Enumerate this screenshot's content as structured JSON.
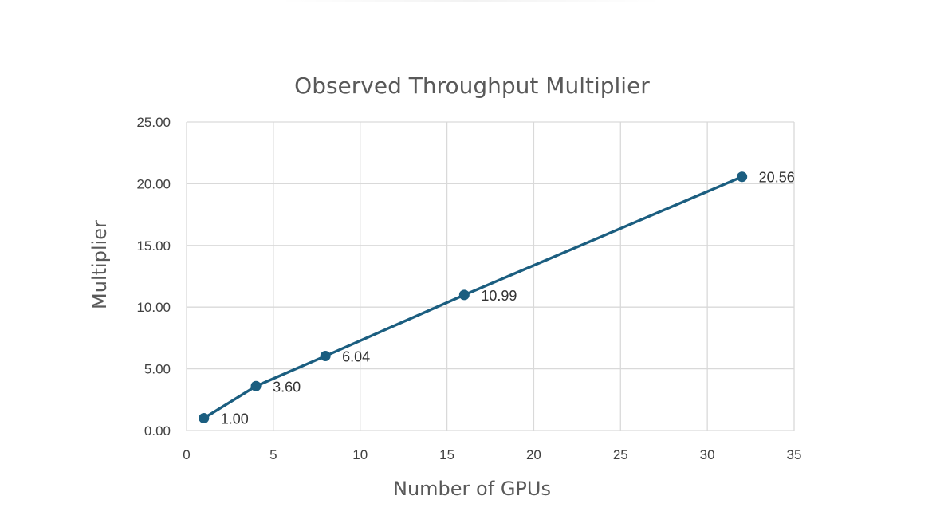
{
  "chart_data": {
    "type": "line",
    "title": "Observed Throughput Multiplier",
    "xlabel": "Number of GPUs",
    "ylabel": "Multiplier",
    "xlim": [
      0,
      35
    ],
    "ylim": [
      0,
      25
    ],
    "x_ticks": [
      "0",
      "5",
      "10",
      "15",
      "20",
      "25",
      "30",
      "35"
    ],
    "y_ticks": [
      "0.00",
      "5.00",
      "10.00",
      "15.00",
      "20.00",
      "25.00"
    ],
    "grid": true,
    "legend": "none",
    "series": [
      {
        "x": [
          1,
          4,
          8,
          16,
          32
        ],
        "y": [
          1.0,
          3.6,
          6.04,
          10.99,
          20.56
        ],
        "labels": [
          "1.00",
          "3.60",
          "6.04",
          "10.99",
          "20.56"
        ],
        "color": "#1b5e80"
      }
    ]
  }
}
